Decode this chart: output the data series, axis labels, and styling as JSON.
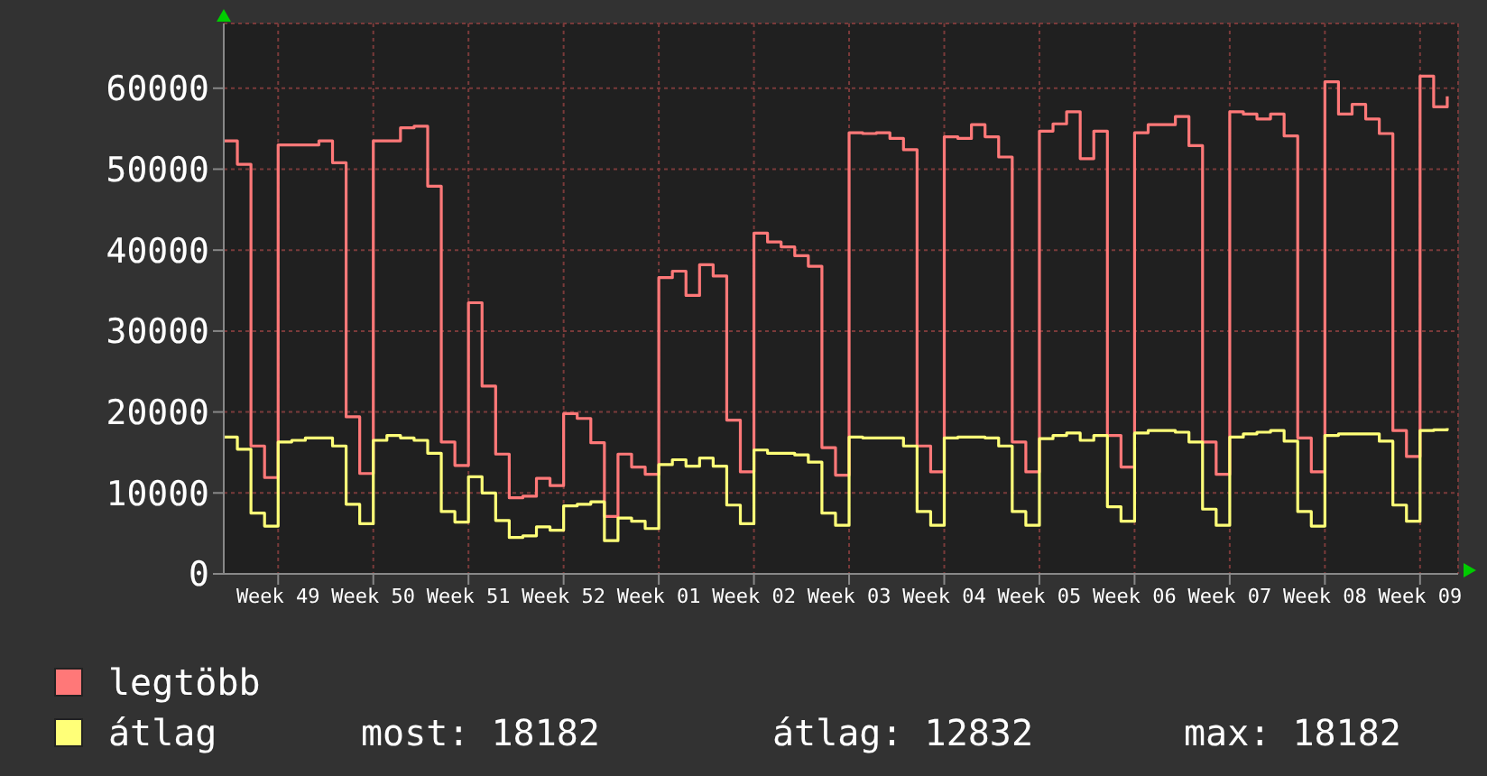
{
  "chart_data": {
    "type": "step",
    "categories": [
      null,
      null,
      null,
      null,
      "Week 49",
      null,
      null,
      null,
      null,
      null,
      null,
      "Week 50",
      null,
      null,
      null,
      null,
      null,
      null,
      "Week 51",
      null,
      null,
      null,
      null,
      null,
      null,
      "Week 52",
      null,
      null,
      null,
      null,
      null,
      null,
      "Week 01",
      null,
      null,
      null,
      null,
      null,
      null,
      "Week 02",
      null,
      null,
      null,
      null,
      null,
      null,
      "Week 03",
      null,
      null,
      null,
      null,
      null,
      null,
      "Week 04",
      null,
      null,
      null,
      null,
      null,
      null,
      "Week 05",
      null,
      null,
      null,
      null,
      null,
      null,
      "Week 06",
      null,
      null,
      null,
      null,
      null,
      null,
      "Week 07",
      null,
      null,
      null,
      null,
      null,
      null,
      "Week 08",
      null,
      null,
      null,
      null,
      null,
      null,
      "Week 09",
      null,
      null
    ],
    "series": [
      {
        "name": "legtöbb",
        "color": "#ff7878",
        "values": [
          53500,
          50600,
          15800,
          11900,
          53000,
          53000,
          53000,
          53500,
          50800,
          19400,
          12400,
          53500,
          53500,
          55100,
          55300,
          47900,
          16300,
          13400,
          33500,
          23200,
          14800,
          9400,
          9600,
          11800,
          10900,
          19800,
          19200,
          16200,
          7100,
          14800,
          13200,
          12300,
          36600,
          37400,
          34400,
          38200,
          36800,
          19000,
          12600,
          42100,
          41000,
          40400,
          39300,
          38000,
          15600,
          12200,
          54500,
          54400,
          54500,
          53800,
          52400,
          15800,
          12600,
          54000,
          53800,
          55500,
          54000,
          51500,
          16300,
          12600,
          54700,
          55600,
          57100,
          51300,
          54700,
          17100,
          13200,
          54500,
          55500,
          55500,
          56500,
          52900,
          16300,
          12300,
          57100,
          56800,
          56200,
          56800,
          54100,
          16800,
          12600,
          60800,
          56800,
          58000,
          56200,
          54400,
          17700,
          14500,
          61500,
          57700,
          59000
        ]
      },
      {
        "name": "átlag",
        "color": "#ffff78",
        "values": [
          16900,
          15400,
          7500,
          5900,
          16300,
          16500,
          16800,
          16800,
          15800,
          8600,
          6200,
          16500,
          17100,
          16800,
          16500,
          14900,
          7700,
          6400,
          12000,
          10000,
          6600,
          4500,
          4700,
          5800,
          5400,
          8400,
          8600,
          8900,
          4100,
          6900,
          6500,
          5600,
          13500,
          14100,
          13300,
          14300,
          13300,
          8500,
          6200,
          15300,
          14900,
          14900,
          14700,
          13800,
          7500,
          6000,
          16900,
          16800,
          16800,
          16800,
          15800,
          7700,
          6000,
          16800,
          16900,
          16900,
          16800,
          15800,
          7700,
          6000,
          16700,
          17100,
          17400,
          16500,
          17100,
          8300,
          6500,
          17400,
          17700,
          17700,
          17500,
          16300,
          8000,
          6000,
          16900,
          17300,
          17500,
          17700,
          16400,
          7700,
          5900,
          17100,
          17300,
          17300,
          17300,
          16400,
          8500,
          6500,
          17700,
          17800,
          18000
        ]
      }
    ],
    "ylim": [
      0,
      68000
    ],
    "yticks": [
      0,
      10000,
      20000,
      30000,
      40000,
      50000,
      60000
    ],
    "grid": true,
    "legend": "bottom left",
    "line_style": "solid",
    "marker": "none",
    "annotations": [
      "most: 18182",
      "átlag: 12832",
      "max: 18182"
    ]
  }
}
